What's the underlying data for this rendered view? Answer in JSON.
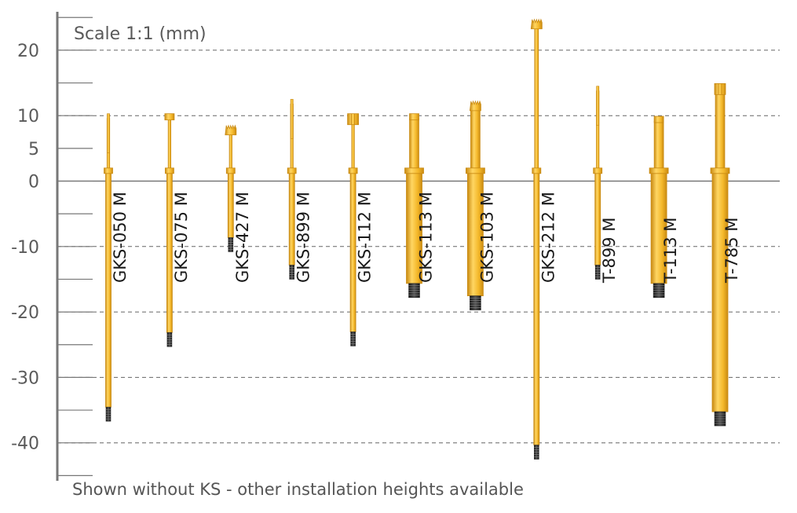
{
  "title": "Scale 1:1 (mm)",
  "footer": "Shown without KS - other installation heights available",
  "colors": {
    "gold": "#f4b82a",
    "gold_dark": "#c98a12",
    "gold_light": "#ffd663",
    "thread": "#2e2e2e",
    "grid": "#666666",
    "axis": "#777777",
    "text": "#5a5a5a"
  },
  "axis": {
    "min": -45,
    "max": 25,
    "major_ticks": [
      {
        "value": 20,
        "label": "20"
      },
      {
        "value": 10,
        "label": "10"
      },
      {
        "value": 5,
        "label": "5"
      },
      {
        "value": 0,
        "label": "0"
      },
      {
        "value": -10,
        "label": "-10"
      },
      {
        "value": -20,
        "label": "-20"
      },
      {
        "value": -30,
        "label": "-30"
      },
      {
        "value": -40,
        "label": "-40"
      }
    ],
    "gridlines": [
      20,
      10,
      -10,
      -20,
      -30,
      -40
    ],
    "zero_line": 0
  },
  "probes": [
    {
      "label": "GKS-050 M",
      "top": 10.3,
      "bottom": -36.7,
      "head": "needle"
    },
    {
      "label": "GKS-075 M",
      "top": 10.3,
      "bottom": -25.3,
      "head": "flat"
    },
    {
      "label": "GKS-427 M",
      "top": 8.5,
      "bottom": -10.8,
      "head": "crown"
    },
    {
      "label": "GKS-899 M",
      "top": 12.5,
      "bottom": -15.0,
      "head": "needle"
    },
    {
      "label": "GKS-112 M",
      "top": 10.3,
      "bottom": -25.2,
      "head": "fork"
    },
    {
      "label": "GKS-113 M",
      "top": 10.3,
      "bottom": -17.8,
      "head": "flat"
    },
    {
      "label": "GKS-103 M",
      "top": 12.2,
      "bottom": -19.7,
      "head": "crown"
    },
    {
      "label": "GKS-212 M",
      "top": 24.7,
      "bottom": -42.5,
      "head": "crown"
    },
    {
      "label": "T-899 M",
      "top": 14.5,
      "bottom": -15.0,
      "head": "needle"
    },
    {
      "label": "T-113 M",
      "top": 9.9,
      "bottom": -17.8,
      "head": "flat"
    },
    {
      "label": "T-785 M",
      "top": 14.9,
      "bottom": -37.4,
      "head": "fork"
    }
  ]
}
